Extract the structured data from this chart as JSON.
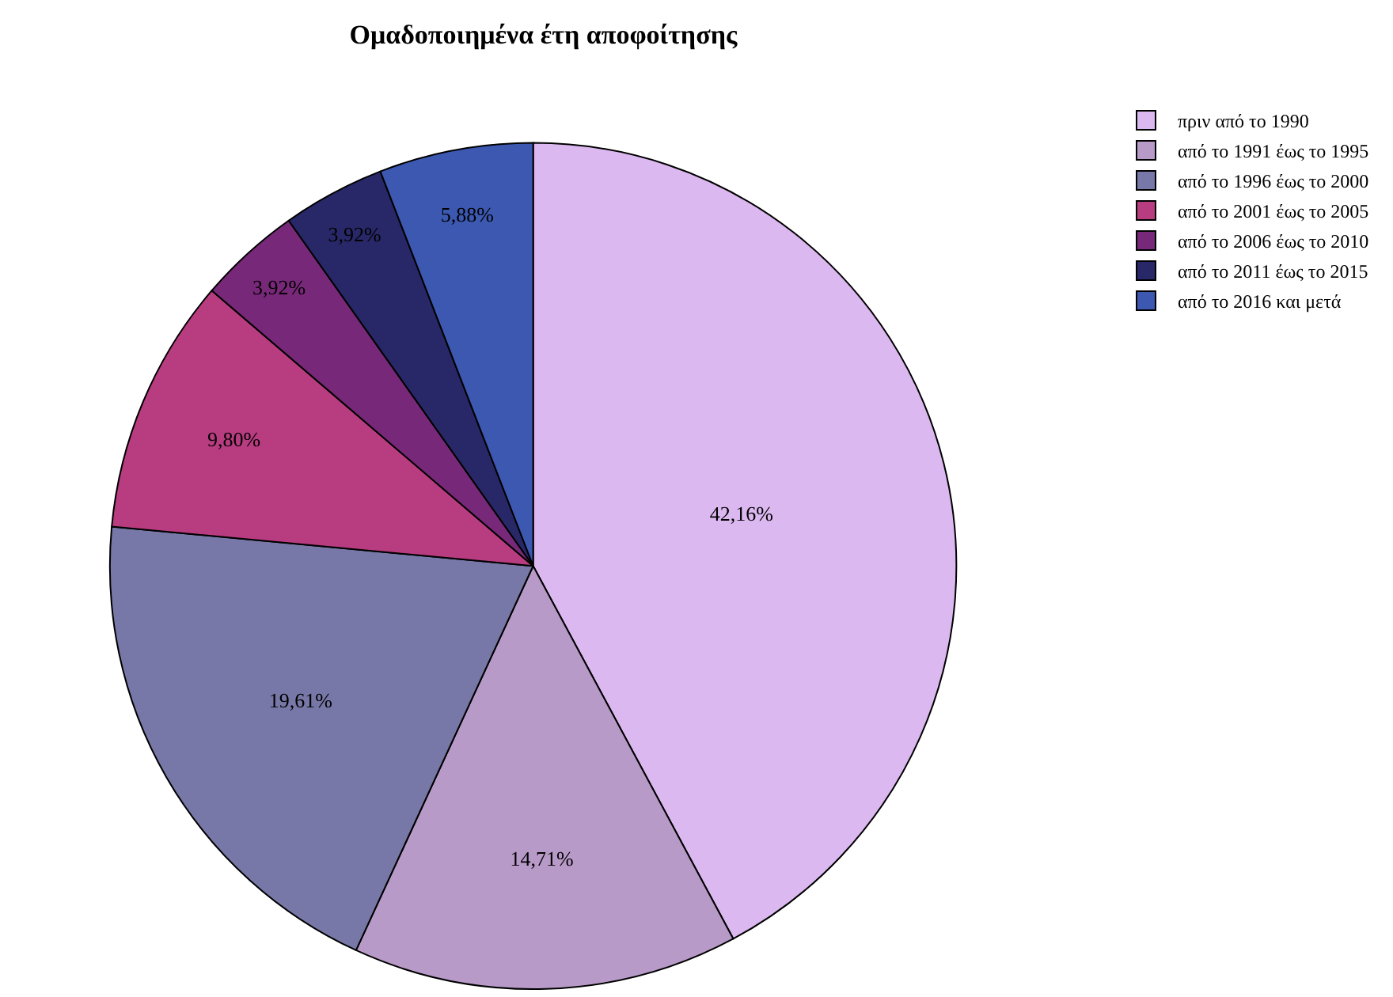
{
  "chart_data": {
    "type": "pie",
    "title": "Ομαδοποιημένα έτη αποφοίτησης",
    "categories": [
      "πριν από το 1990",
      "από το 1991 έως το 1995",
      "από το 1996 έως το 2000",
      "από το 2001 έως το 2005",
      "από το 2006 έως το 2010",
      "από το 2011 έως το 2015",
      "από το 2016 και μετά"
    ],
    "values": [
      42.16,
      14.71,
      19.61,
      9.8,
      3.92,
      3.92,
      5.88
    ],
    "value_labels": [
      "42,16%",
      "14,71%",
      "19,61%",
      "9,80%",
      "3,92%",
      "3,92%",
      "5,88%"
    ],
    "colors": [
      "#dcb8f0",
      "#b89ac8",
      "#7878a8",
      "#b83c80",
      "#782878",
      "#282868",
      "#3c58b0"
    ],
    "legend": "top right"
  }
}
